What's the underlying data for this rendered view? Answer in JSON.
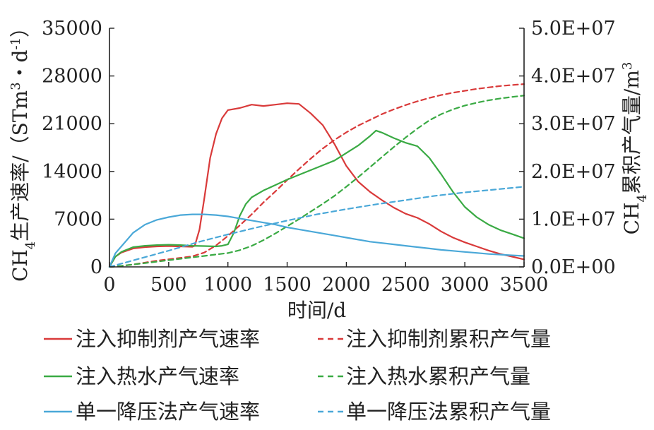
{
  "chart_data": {
    "type": "line",
    "xlabel": "时间/d",
    "ylabel_left": "CH4生产速率/(STm3·d-1)",
    "ylabel_left_parts": [
      "CH",
      "4",
      "生产速率/（STm",
      "3",
      "・d",
      "-1",
      "）"
    ],
    "ylabel_right": "CH4累积产气量/m3",
    "ylabel_right_parts": [
      "CH",
      "4",
      "累积产气量/m",
      "3"
    ],
    "xlim": [
      0,
      3500
    ],
    "ylim_left": [
      0,
      35000
    ],
    "ylim_right": [
      0,
      50000000
    ],
    "x_ticks": [
      "0",
      "500",
      "1000",
      "1500",
      "2000",
      "2500",
      "3000",
      "3500"
    ],
    "y_left_ticks": [
      "0",
      "7000",
      "14000",
      "21000",
      "28000",
      "35000"
    ],
    "y_right_ticks": [
      "0.0E+00",
      "1.0E+07",
      "2.0E+07",
      "3.0E+07",
      "4.0E+07",
      "5.0E+07"
    ],
    "grid": false,
    "legend_position": "bottom",
    "series": [
      {
        "name": "注入抑制剂产气速率",
        "axis": "left",
        "style": "solid",
        "color": "#d93a3a",
        "points": [
          [
            0,
            0
          ],
          [
            50,
            1500
          ],
          [
            100,
            2100
          ],
          [
            200,
            2700
          ],
          [
            300,
            2900
          ],
          [
            400,
            3000
          ],
          [
            500,
            3050
          ],
          [
            600,
            3000
          ],
          [
            700,
            2950
          ],
          [
            720,
            3100
          ],
          [
            760,
            5500
          ],
          [
            800,
            10000
          ],
          [
            850,
            16000
          ],
          [
            900,
            19500
          ],
          [
            950,
            21800
          ],
          [
            1000,
            23000
          ],
          [
            1100,
            23300
          ],
          [
            1200,
            23800
          ],
          [
            1300,
            23600
          ],
          [
            1400,
            23800
          ],
          [
            1500,
            24000
          ],
          [
            1600,
            23900
          ],
          [
            1700,
            22500
          ],
          [
            1800,
            20800
          ],
          [
            1900,
            18000
          ],
          [
            2000,
            14800
          ],
          [
            2100,
            12500
          ],
          [
            2200,
            11000
          ],
          [
            2300,
            9800
          ],
          [
            2400,
            8700
          ],
          [
            2500,
            7800
          ],
          [
            2600,
            7200
          ],
          [
            2700,
            6300
          ],
          [
            2800,
            5200
          ],
          [
            2900,
            4300
          ],
          [
            3000,
            3600
          ],
          [
            3100,
            3000
          ],
          [
            3200,
            2400
          ],
          [
            3300,
            1900
          ],
          [
            3400,
            1500
          ],
          [
            3500,
            1100
          ]
        ]
      },
      {
        "name": "注入抑制剂累积产气量",
        "axis": "right",
        "style": "dashed",
        "color": "#d93a3a",
        "points": [
          [
            0,
            0
          ],
          [
            100,
            200000
          ],
          [
            200,
            500000
          ],
          [
            300,
            900000
          ],
          [
            400,
            1300000
          ],
          [
            500,
            1600000
          ],
          [
            600,
            1900000
          ],
          [
            700,
            2200000
          ],
          [
            800,
            3000000
          ],
          [
            900,
            4500000
          ],
          [
            1000,
            6500000
          ],
          [
            1100,
            8700000
          ],
          [
            1200,
            11000000
          ],
          [
            1300,
            13500000
          ],
          [
            1400,
            15800000
          ],
          [
            1500,
            18200000
          ],
          [
            1600,
            20500000
          ],
          [
            1700,
            22700000
          ],
          [
            1800,
            24800000
          ],
          [
            1900,
            26600000
          ],
          [
            2000,
            28200000
          ],
          [
            2100,
            29600000
          ],
          [
            2200,
            30800000
          ],
          [
            2300,
            32000000
          ],
          [
            2400,
            33000000
          ],
          [
            2500,
            33900000
          ],
          [
            2600,
            34700000
          ],
          [
            2700,
            35400000
          ],
          [
            2800,
            36000000
          ],
          [
            2900,
            36500000
          ],
          [
            3000,
            36900000
          ],
          [
            3100,
            37300000
          ],
          [
            3200,
            37600000
          ],
          [
            3300,
            37900000
          ],
          [
            3400,
            38100000
          ],
          [
            3500,
            38300000
          ]
        ]
      },
      {
        "name": "注入热水产气速率",
        "axis": "left",
        "style": "solid",
        "color": "#3aaa44",
        "points": [
          [
            0,
            0
          ],
          [
            50,
            1500
          ],
          [
            100,
            2200
          ],
          [
            200,
            2900
          ],
          [
            300,
            3100
          ],
          [
            400,
            3200
          ],
          [
            500,
            3250
          ],
          [
            600,
            3200
          ],
          [
            700,
            3100
          ],
          [
            800,
            3050
          ],
          [
            900,
            3000
          ],
          [
            950,
            3100
          ],
          [
            1000,
            3300
          ],
          [
            1050,
            5000
          ],
          [
            1100,
            7500
          ],
          [
            1150,
            9200
          ],
          [
            1200,
            10200
          ],
          [
            1300,
            11200
          ],
          [
            1400,
            12000
          ],
          [
            1500,
            12800
          ],
          [
            1600,
            13500
          ],
          [
            1700,
            14200
          ],
          [
            1800,
            14900
          ],
          [
            1900,
            15600
          ],
          [
            2000,
            16700
          ],
          [
            2100,
            17800
          ],
          [
            2200,
            19200
          ],
          [
            2250,
            20000
          ],
          [
            2300,
            19700
          ],
          [
            2400,
            18900
          ],
          [
            2500,
            18200
          ],
          [
            2600,
            17700
          ],
          [
            2700,
            16000
          ],
          [
            2800,
            13600
          ],
          [
            2900,
            11000
          ],
          [
            3000,
            8800
          ],
          [
            3100,
            7300
          ],
          [
            3200,
            6200
          ],
          [
            3300,
            5400
          ],
          [
            3400,
            4800
          ],
          [
            3500,
            4200
          ]
        ]
      },
      {
        "name": "注入热水累积产气量",
        "axis": "right",
        "style": "dashed",
        "color": "#3aaa44",
        "points": [
          [
            0,
            0
          ],
          [
            100,
            200000
          ],
          [
            200,
            500000
          ],
          [
            300,
            800000
          ],
          [
            400,
            1100000
          ],
          [
            500,
            1400000
          ],
          [
            600,
            1700000
          ],
          [
            700,
            2000000
          ],
          [
            800,
            2300000
          ],
          [
            900,
            2600000
          ],
          [
            1000,
            2900000
          ],
          [
            1100,
            3500000
          ],
          [
            1200,
            4400000
          ],
          [
            1300,
            5600000
          ],
          [
            1400,
            7000000
          ],
          [
            1500,
            8500000
          ],
          [
            1600,
            10000000
          ],
          [
            1700,
            11600000
          ],
          [
            1800,
            13200000
          ],
          [
            1900,
            14900000
          ],
          [
            2000,
            16800000
          ],
          [
            2100,
            18800000
          ],
          [
            2200,
            20900000
          ],
          [
            2300,
            23000000
          ],
          [
            2400,
            25100000
          ],
          [
            2500,
            27100000
          ],
          [
            2600,
            29000000
          ],
          [
            2700,
            30700000
          ],
          [
            2800,
            32000000
          ],
          [
            2900,
            33000000
          ],
          [
            3000,
            33800000
          ],
          [
            3100,
            34400000
          ],
          [
            3200,
            34900000
          ],
          [
            3300,
            35300000
          ],
          [
            3400,
            35600000
          ],
          [
            3500,
            35900000
          ]
        ]
      },
      {
        "name": "单一降压法产气速率",
        "axis": "left",
        "style": "solid",
        "color": "#4aa8d8",
        "points": [
          [
            0,
            0
          ],
          [
            50,
            2000
          ],
          [
            100,
            3000
          ],
          [
            200,
            5000
          ],
          [
            300,
            6200
          ],
          [
            400,
            6900
          ],
          [
            500,
            7300
          ],
          [
            600,
            7600
          ],
          [
            700,
            7700
          ],
          [
            800,
            7700
          ],
          [
            900,
            7600
          ],
          [
            1000,
            7400
          ],
          [
            1100,
            7100
          ],
          [
            1200,
            6800
          ],
          [
            1300,
            6500
          ],
          [
            1400,
            6200
          ],
          [
            1500,
            5800
          ],
          [
            1600,
            5500
          ],
          [
            1700,
            5200
          ],
          [
            1800,
            4900
          ],
          [
            1900,
            4600
          ],
          [
            2000,
            4300
          ],
          [
            2100,
            4000
          ],
          [
            2200,
            3700
          ],
          [
            2300,
            3500
          ],
          [
            2400,
            3300
          ],
          [
            2500,
            3100
          ],
          [
            2600,
            2900
          ],
          [
            2700,
            2700
          ],
          [
            2800,
            2500
          ],
          [
            2900,
            2350
          ],
          [
            3000,
            2200
          ],
          [
            3100,
            2050
          ],
          [
            3200,
            1900
          ],
          [
            3300,
            1800
          ],
          [
            3400,
            1700
          ],
          [
            3500,
            1600
          ]
        ]
      },
      {
        "name": "单一降压法累积产气量",
        "axis": "right",
        "style": "dashed",
        "color": "#4aa8d8",
        "points": [
          [
            0,
            0
          ],
          [
            250,
            1700000
          ],
          [
            500,
            3400000
          ],
          [
            750,
            5200000
          ],
          [
            1000,
            6800000
          ],
          [
            1250,
            8300000
          ],
          [
            1500,
            9700000
          ],
          [
            1750,
            11000000
          ],
          [
            2000,
            12100000
          ],
          [
            2250,
            13100000
          ],
          [
            2500,
            14000000
          ],
          [
            2750,
            14900000
          ],
          [
            3000,
            15600000
          ],
          [
            3250,
            16200000
          ],
          [
            3500,
            16800000
          ]
        ]
      }
    ]
  }
}
